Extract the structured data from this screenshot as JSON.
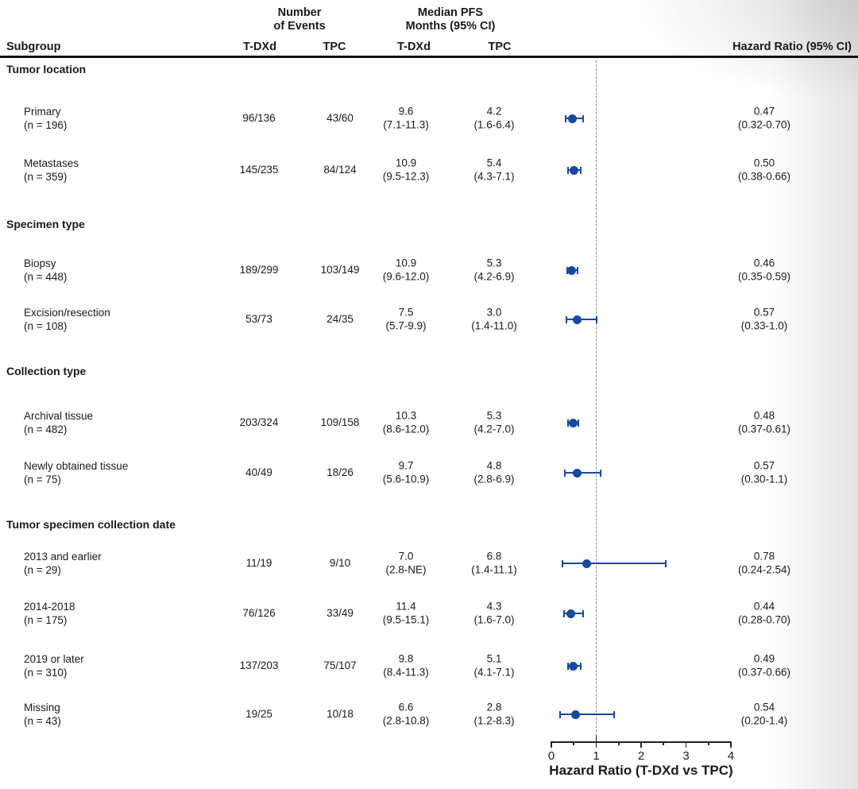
{
  "header": {
    "subgroup": "Subgroup",
    "events_group_line1": "Number",
    "events_group_line2": "of Events",
    "pfs_group_line1": "Median PFS",
    "pfs_group_line2": "Months (95% CI)",
    "events_tdxd": "T-DXd",
    "events_tpc": "TPC",
    "pfs_tdxd": "T-DXd",
    "pfs_tpc": "TPC",
    "hazard_ratio": "Hazard Ratio (95% CI)"
  },
  "colors": {
    "marker": "#17499d",
    "text": "#1a1a1a",
    "reference_line": "#8c8c8c",
    "axis": "#222222"
  },
  "chart_data": {
    "type": "forest",
    "x_axis": {
      "label": "Hazard Ratio (T-DXd vs TPC)",
      "range": [
        0,
        4
      ],
      "major_ticks": [
        0,
        1,
        2,
        3,
        4
      ],
      "minor_tick_step": 0.5,
      "reference_line": 1
    },
    "groups": [
      {
        "label": "Tumor location",
        "rows": [
          {
            "label": "Primary",
            "n": "(n = 196)",
            "events_tdxd": "96/136",
            "events_tpc": "43/60",
            "pfs_tdxd": "9.6",
            "pfs_tdxd_ci": "(7.1-11.3)",
            "pfs_tpc": "4.2",
            "pfs_tpc_ci": "(1.6-6.4)",
            "hr": 0.47,
            "ci_low": 0.32,
            "ci_high": 0.7,
            "hr_text": "0.47",
            "hr_ci_text": "(0.32-0.70)"
          },
          {
            "label": "Metastases",
            "n": "(n = 359)",
            "events_tdxd": "145/235",
            "events_tpc": "84/124",
            "pfs_tdxd": "10.9",
            "pfs_tdxd_ci": "(9.5-12.3)",
            "pfs_tpc": "5.4",
            "pfs_tpc_ci": "(4.3-7.1)",
            "hr": 0.5,
            "ci_low": 0.38,
            "ci_high": 0.66,
            "hr_text": "0.50",
            "hr_ci_text": "(0.38-0.66)"
          }
        ]
      },
      {
        "label": "Specimen type",
        "rows": [
          {
            "label": "Biopsy",
            "n": "(n = 448)",
            "events_tdxd": "189/299",
            "events_tpc": "103/149",
            "pfs_tdxd": "10.9",
            "pfs_tdxd_ci": "(9.6-12.0)",
            "pfs_tpc": "5.3",
            "pfs_tpc_ci": "(4.2-6.9)",
            "hr": 0.46,
            "ci_low": 0.35,
            "ci_high": 0.59,
            "hr_text": "0.46",
            "hr_ci_text": "(0.35-0.59)"
          },
          {
            "label": "Excision/resection",
            "n": "(n = 108)",
            "events_tdxd": "53/73",
            "events_tpc": "24/35",
            "pfs_tdxd": "7.5",
            "pfs_tdxd_ci": "(5.7-9.9)",
            "pfs_tpc": "3.0",
            "pfs_tpc_ci": "(1.4-11.0)",
            "hr": 0.57,
            "ci_low": 0.33,
            "ci_high": 1.0,
            "hr_text": "0.57",
            "hr_ci_text": "(0.33-1.0)"
          }
        ]
      },
      {
        "label": "Collection type",
        "rows": [
          {
            "label": "Archival tissue",
            "n": "(n = 482)",
            "events_tdxd": "203/324",
            "events_tpc": "109/158",
            "pfs_tdxd": "10.3",
            "pfs_tdxd_ci": "(8.6-12.0)",
            "pfs_tpc": "5.3",
            "pfs_tpc_ci": "(4.2-7.0)",
            "hr": 0.48,
            "ci_low": 0.37,
            "ci_high": 0.61,
            "hr_text": "0.48",
            "hr_ci_text": "(0.37-0.61)"
          },
          {
            "label": "Newly obtained tissue",
            "n": "(n = 75)",
            "events_tdxd": "40/49",
            "events_tpc": "18/26",
            "pfs_tdxd": "9.7",
            "pfs_tdxd_ci": "(5.6-10.9)",
            "pfs_tpc": "4.8",
            "pfs_tpc_ci": "(2.8-6.9)",
            "hr": 0.57,
            "ci_low": 0.3,
            "ci_high": 1.1,
            "hr_text": "0.57",
            "hr_ci_text": "(0.30-1.1)"
          }
        ]
      },
      {
        "label": "Tumor specimen collection date",
        "rows": [
          {
            "label": "2013 and earlier",
            "n": "(n = 29)",
            "events_tdxd": "11/19",
            "events_tpc": "9/10",
            "pfs_tdxd": "7.0",
            "pfs_tdxd_ci": "(2.8-NE)",
            "pfs_tpc": "6.8",
            "pfs_tpc_ci": "(1.4-11.1)",
            "hr": 0.78,
            "ci_low": 0.24,
            "ci_high": 2.54,
            "hr_text": "0.78",
            "hr_ci_text": "(0.24-2.54)"
          },
          {
            "label": "2014-2018",
            "n": "(n = 175)",
            "events_tdxd": "76/126",
            "events_tpc": "33/49",
            "pfs_tdxd": "11.4",
            "pfs_tdxd_ci": "(9.5-15.1)",
            "pfs_tpc": "4.3",
            "pfs_tpc_ci": "(1.6-7.0)",
            "hr": 0.44,
            "ci_low": 0.28,
            "ci_high": 0.7,
            "hr_text": "0.44",
            "hr_ci_text": "(0.28-0.70)"
          },
          {
            "label": "2019 or later",
            "n": "(n = 310)",
            "events_tdxd": "137/203",
            "events_tpc": "75/107",
            "pfs_tdxd": "9.8",
            "pfs_tdxd_ci": "(8.4-11.3)",
            "pfs_tpc": "5.1",
            "pfs_tpc_ci": "(4.1-7.1)",
            "hr": 0.49,
            "ci_low": 0.37,
            "ci_high": 0.66,
            "hr_text": "0.49",
            "hr_ci_text": "(0.37-0.66)"
          },
          {
            "label": "Missing",
            "n": "(n = 43)",
            "events_tdxd": "19/25",
            "events_tpc": "10/18",
            "pfs_tdxd": "6.6",
            "pfs_tdxd_ci": "(2.8-10.8)",
            "pfs_tpc": "2.8",
            "pfs_tpc_ci": "(1.2-8.3)",
            "hr": 0.54,
            "ci_low": 0.2,
            "ci_high": 1.4,
            "hr_text": "0.54",
            "hr_ci_text": "(0.20-1.4)"
          }
        ]
      }
    ]
  }
}
